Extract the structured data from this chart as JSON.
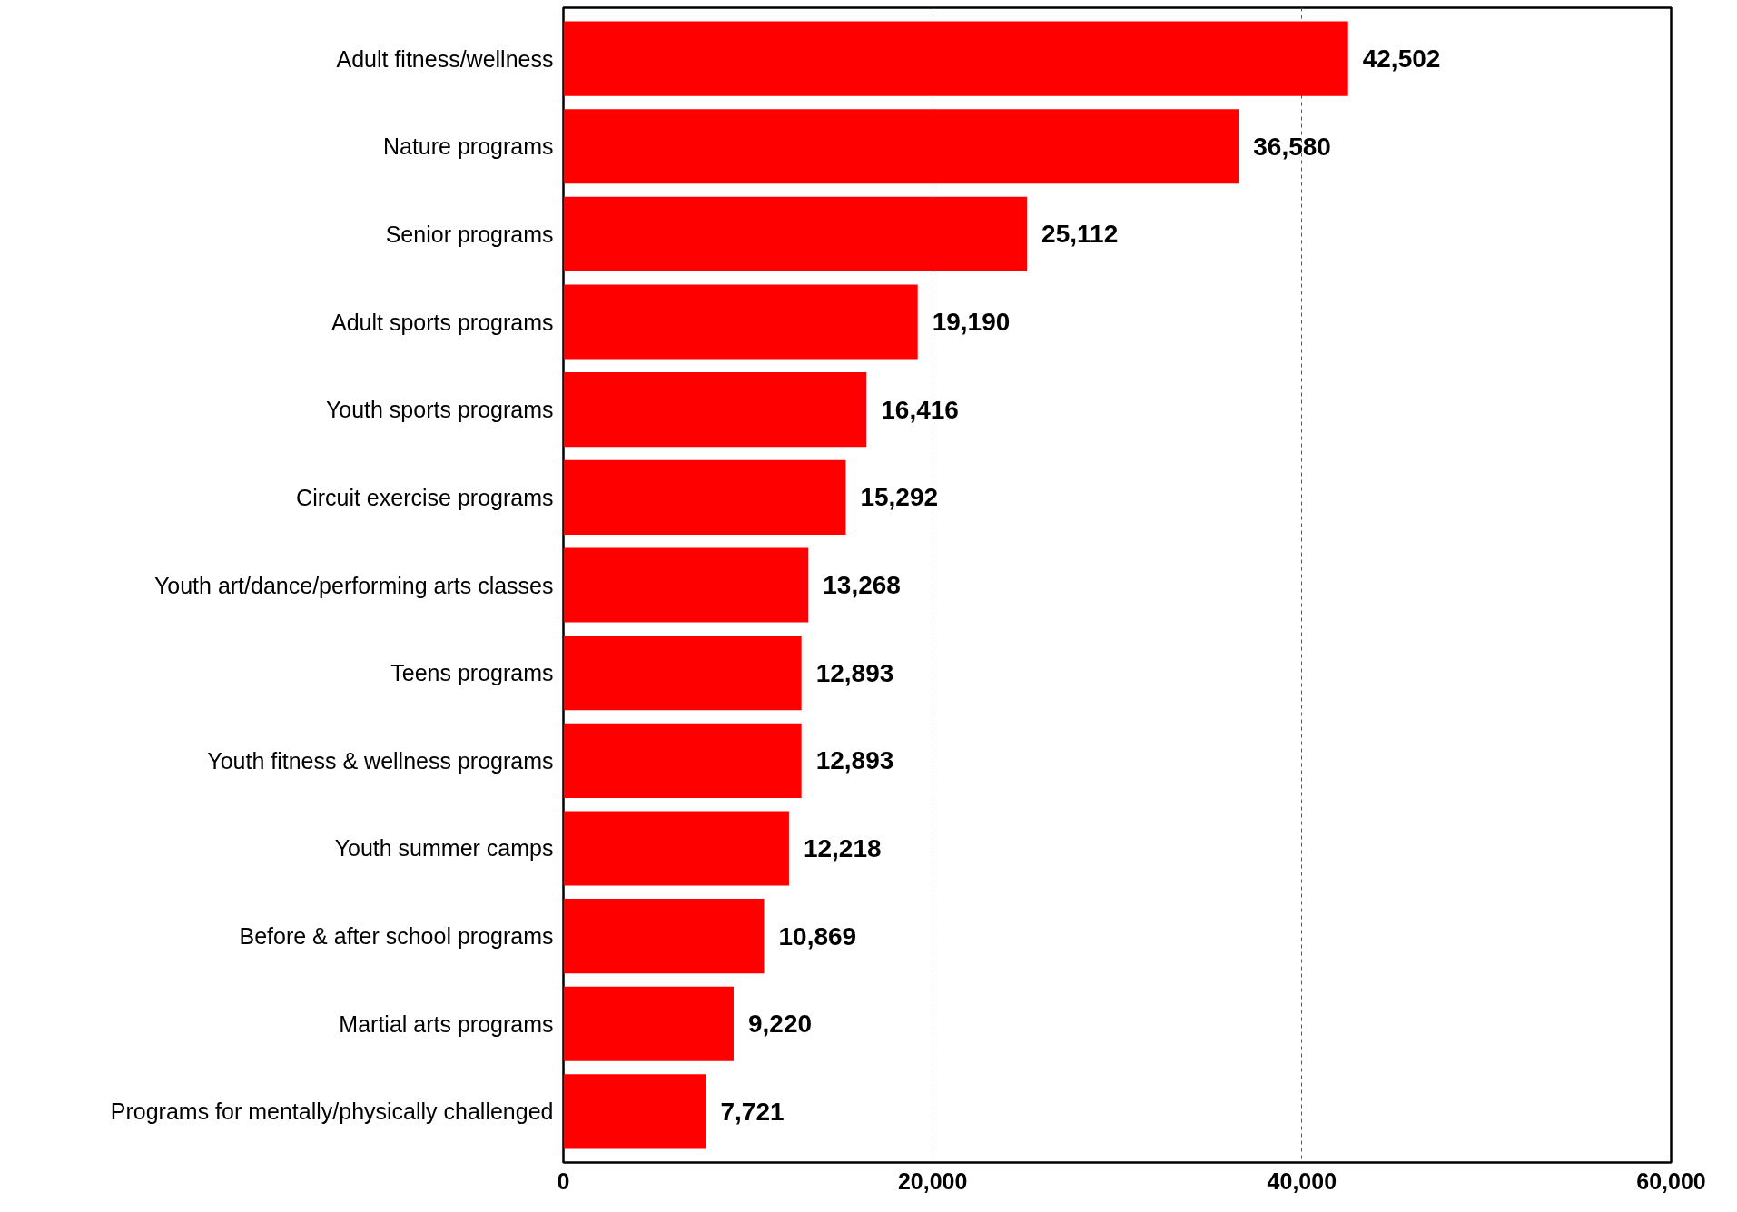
{
  "chart_data": {
    "type": "bar",
    "orientation": "horizontal",
    "categories": [
      "Adult fitness/wellness",
      "Nature programs",
      "Senior programs",
      "Adult sports programs",
      "Youth sports programs",
      "Circuit exercise programs",
      "Youth art/dance/performing arts classes",
      "Teens programs",
      "Youth fitness & wellness programs",
      "Youth summer camps",
      "Before & after school programs",
      "Martial arts programs",
      "Programs for mentally/physically challenged"
    ],
    "values": [
      42502,
      36580,
      25112,
      19190,
      16416,
      15292,
      13268,
      12893,
      12893,
      12218,
      10869,
      9220,
      7721
    ],
    "color": "#ff0000",
    "xlim": [
      0,
      60000
    ],
    "xticks": [
      0,
      {
        "value": 20000,
        "label": "20,000"
      },
      {
        "value": 40000,
        "label": "40,000"
      },
      {
        "value": 60000,
        "label": "60,000"
      }
    ],
    "grid": "x",
    "value_labels": [
      "42,502",
      "36,580",
      "25,112",
      "19,190",
      "16,416",
      "15,292",
      "13,268",
      "12,893",
      "12,893",
      "12,218",
      "10,869",
      "9,220",
      "7,721"
    ]
  }
}
